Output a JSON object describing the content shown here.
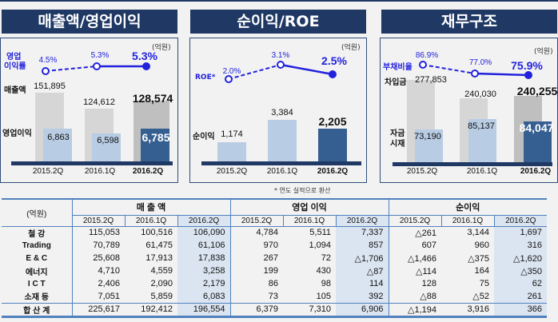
{
  "panels": [
    {
      "title": "매출액/영업이익",
      "unit": "(억원)",
      "line_label": "영업\n이익률",
      "line_label1": "영업",
      "line_label2": "이익률",
      "bar1_label": "매출액",
      "bar2_label": "영업이익",
      "periods": [
        "2015.2Q",
        "2016.1Q",
        "2016.2Q"
      ],
      "line": [
        "4.5%",
        "5.3%",
        "5.3%"
      ],
      "bar1": [
        "151,895",
        "124,612",
        "128,574"
      ],
      "bar2": [
        "6,863",
        "6,598",
        "6,785"
      ]
    },
    {
      "title": "순이익/ROE",
      "unit": "(억원)",
      "line_label": "ROE*",
      "bar2_label": "순이익",
      "periods": [
        "2015.2Q",
        "2016.1Q",
        "2016.2Q"
      ],
      "line": [
        "2.0%",
        "3.1%",
        "2.5%"
      ],
      "bar2": [
        "1,174",
        "3,384",
        "2,205"
      ]
    },
    {
      "title": "재무구조",
      "unit": "(억원)",
      "line_label": "부채비율",
      "bar1_label": "차입금",
      "bar2_label1": "자금",
      "bar2_label2": "시재",
      "periods": [
        "2015.2Q",
        "2016.1Q",
        "2016.2Q"
      ],
      "line": [
        "86.9%",
        "77.0%",
        "75.9%"
      ],
      "bar1": [
        "277,853",
        "240,030",
        "240,255"
      ],
      "bar2": [
        "73,190",
        "85,137",
        "84,047"
      ]
    }
  ],
  "note": "* 연도 실적으로 환산",
  "table": {
    "unit": "(억원)",
    "groups": [
      "매 출 액",
      "영업 이익",
      "순이익"
    ],
    "periods": [
      "2015.2Q",
      "2016.1Q",
      "2016.2Q"
    ],
    "rows": [
      {
        "label": "철 강",
        "values": [
          "115,053",
          "100,516",
          "106,090",
          "4,784",
          "5,511",
          "7,337",
          "△261",
          "3,144",
          "1,697"
        ]
      },
      {
        "label": "Trading",
        "values": [
          "70,789",
          "61,475",
          "61,106",
          "970",
          "1,094",
          "857",
          "607",
          "960",
          "316"
        ]
      },
      {
        "label": "E & C",
        "values": [
          "25,608",
          "17,913",
          "17,838",
          "267",
          "72",
          "△1,706",
          "△1,466",
          "△375",
          "△1,620"
        ]
      },
      {
        "label": "에너지",
        "values": [
          "4,710",
          "4,559",
          "3,258",
          "199",
          "430",
          "△87",
          "△114",
          "164",
          "△350"
        ]
      },
      {
        "label": "I C T",
        "values": [
          "2,406",
          "2,090",
          "2,179",
          "86",
          "98",
          "114",
          "128",
          "75",
          "62"
        ]
      },
      {
        "label": "소재 등",
        "values": [
          "7,051",
          "5,859",
          "6,083",
          "73",
          "105",
          "392",
          "△88",
          "△52",
          "261"
        ]
      }
    ],
    "total": {
      "label": "합 산 계",
      "values": [
        "225,617",
        "192,412",
        "196,554",
        "6,379",
        "7,310",
        "6,906",
        "△1,194",
        "3,916",
        "366"
      ]
    }
  },
  "colors": {
    "navy": "#1f3864",
    "line": "#2222dd",
    "highlight": "#dbe5f1"
  }
}
